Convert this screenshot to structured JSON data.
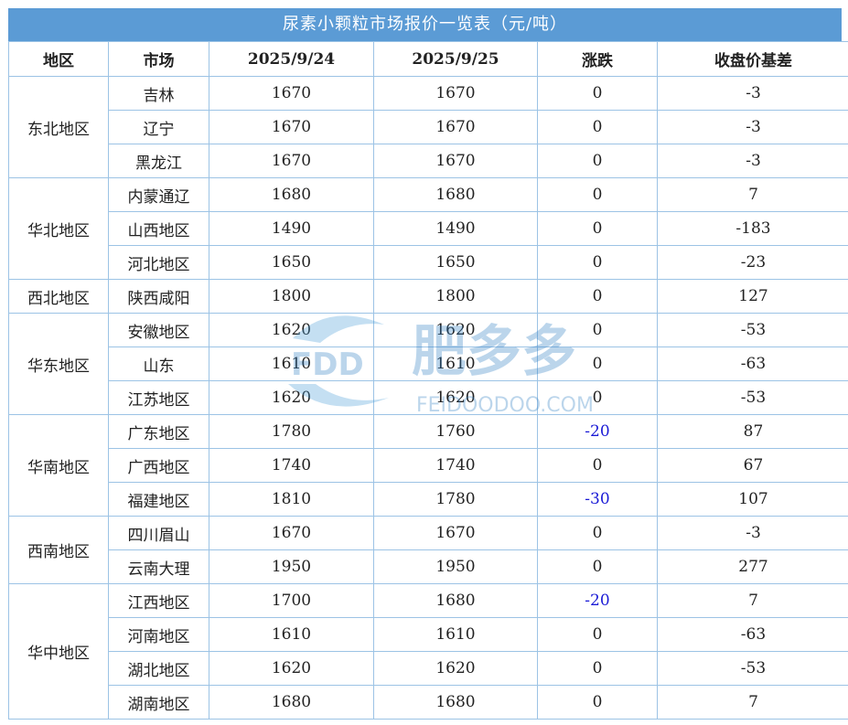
{
  "title": "尿素小颗粒市场报价一览表（元/吨）",
  "headers": [
    "地区",
    "市场",
    "2025/9/24",
    "2025/9/25",
    "涨跌",
    "收盘价基差"
  ],
  "groups": [
    {
      "region": "东北地区",
      "rows": [
        {
          "market": "吉林",
          "d1": "1670",
          "d2": "1670",
          "change": "0",
          "basis": "-3"
        },
        {
          "market": "辽宁",
          "d1": "1670",
          "d2": "1670",
          "change": "0",
          "basis": "-3"
        },
        {
          "market": "黑龙江",
          "d1": "1670",
          "d2": "1670",
          "change": "0",
          "basis": "-3"
        }
      ]
    },
    {
      "region": "华北地区",
      "rows": [
        {
          "market": "内蒙通辽",
          "d1": "1680",
          "d2": "1680",
          "change": "0",
          "basis": "7"
        },
        {
          "market": "山西地区",
          "d1": "1490",
          "d2": "1490",
          "change": "0",
          "basis": "-183"
        },
        {
          "market": "河北地区",
          "d1": "1650",
          "d2": "1650",
          "change": "0",
          "basis": "-23"
        }
      ]
    },
    {
      "region": "西北地区",
      "rows": [
        {
          "market": "陕西咸阳",
          "d1": "1800",
          "d2": "1800",
          "change": "0",
          "basis": "127"
        }
      ]
    },
    {
      "region": "华东地区",
      "rows": [
        {
          "market": "安徽地区",
          "d1": "1620",
          "d2": "1620",
          "change": "0",
          "basis": "-53"
        },
        {
          "market": "山东",
          "d1": "1610",
          "d2": "1610",
          "change": "0",
          "basis": "-63"
        },
        {
          "market": "江苏地区",
          "d1": "1620",
          "d2": "1620",
          "change": "0",
          "basis": "-53"
        }
      ]
    },
    {
      "region": "华南地区",
      "rows": [
        {
          "market": "广东地区",
          "d1": "1780",
          "d2": "1760",
          "change": "-20",
          "basis": "87"
        },
        {
          "market": "广西地区",
          "d1": "1740",
          "d2": "1740",
          "change": "0",
          "basis": "67"
        },
        {
          "market": "福建地区",
          "d1": "1810",
          "d2": "1780",
          "change": "-30",
          "basis": "107"
        }
      ]
    },
    {
      "region": "西南地区",
      "rows": [
        {
          "market": "四川眉山",
          "d1": "1670",
          "d2": "1670",
          "change": "0",
          "basis": "-3"
        },
        {
          "market": "云南大理",
          "d1": "1950",
          "d2": "1950",
          "change": "0",
          "basis": "277"
        }
      ]
    },
    {
      "region": "华中地区",
      "rows": [
        {
          "market": "江西地区",
          "d1": "1700",
          "d2": "1680",
          "change": "-20",
          "basis": "7"
        },
        {
          "market": "河南地区",
          "d1": "1610",
          "d2": "1610",
          "change": "0",
          "basis": "-63"
        },
        {
          "market": "湖北地区",
          "d1": "1620",
          "d2": "1620",
          "change": "0",
          "basis": "-53"
        },
        {
          "market": "湖南地区",
          "d1": "1680",
          "d2": "1680",
          "change": "0",
          "basis": "7"
        }
      ]
    }
  ],
  "watermark": {
    "logo_text": "FDD",
    "brand": "肥多多",
    "url": "FEIDOODOO.COM"
  },
  "colors": {
    "header_bg": "#5b9bd5",
    "border": "#9cc3e5",
    "negative": "#1a1ad6"
  }
}
